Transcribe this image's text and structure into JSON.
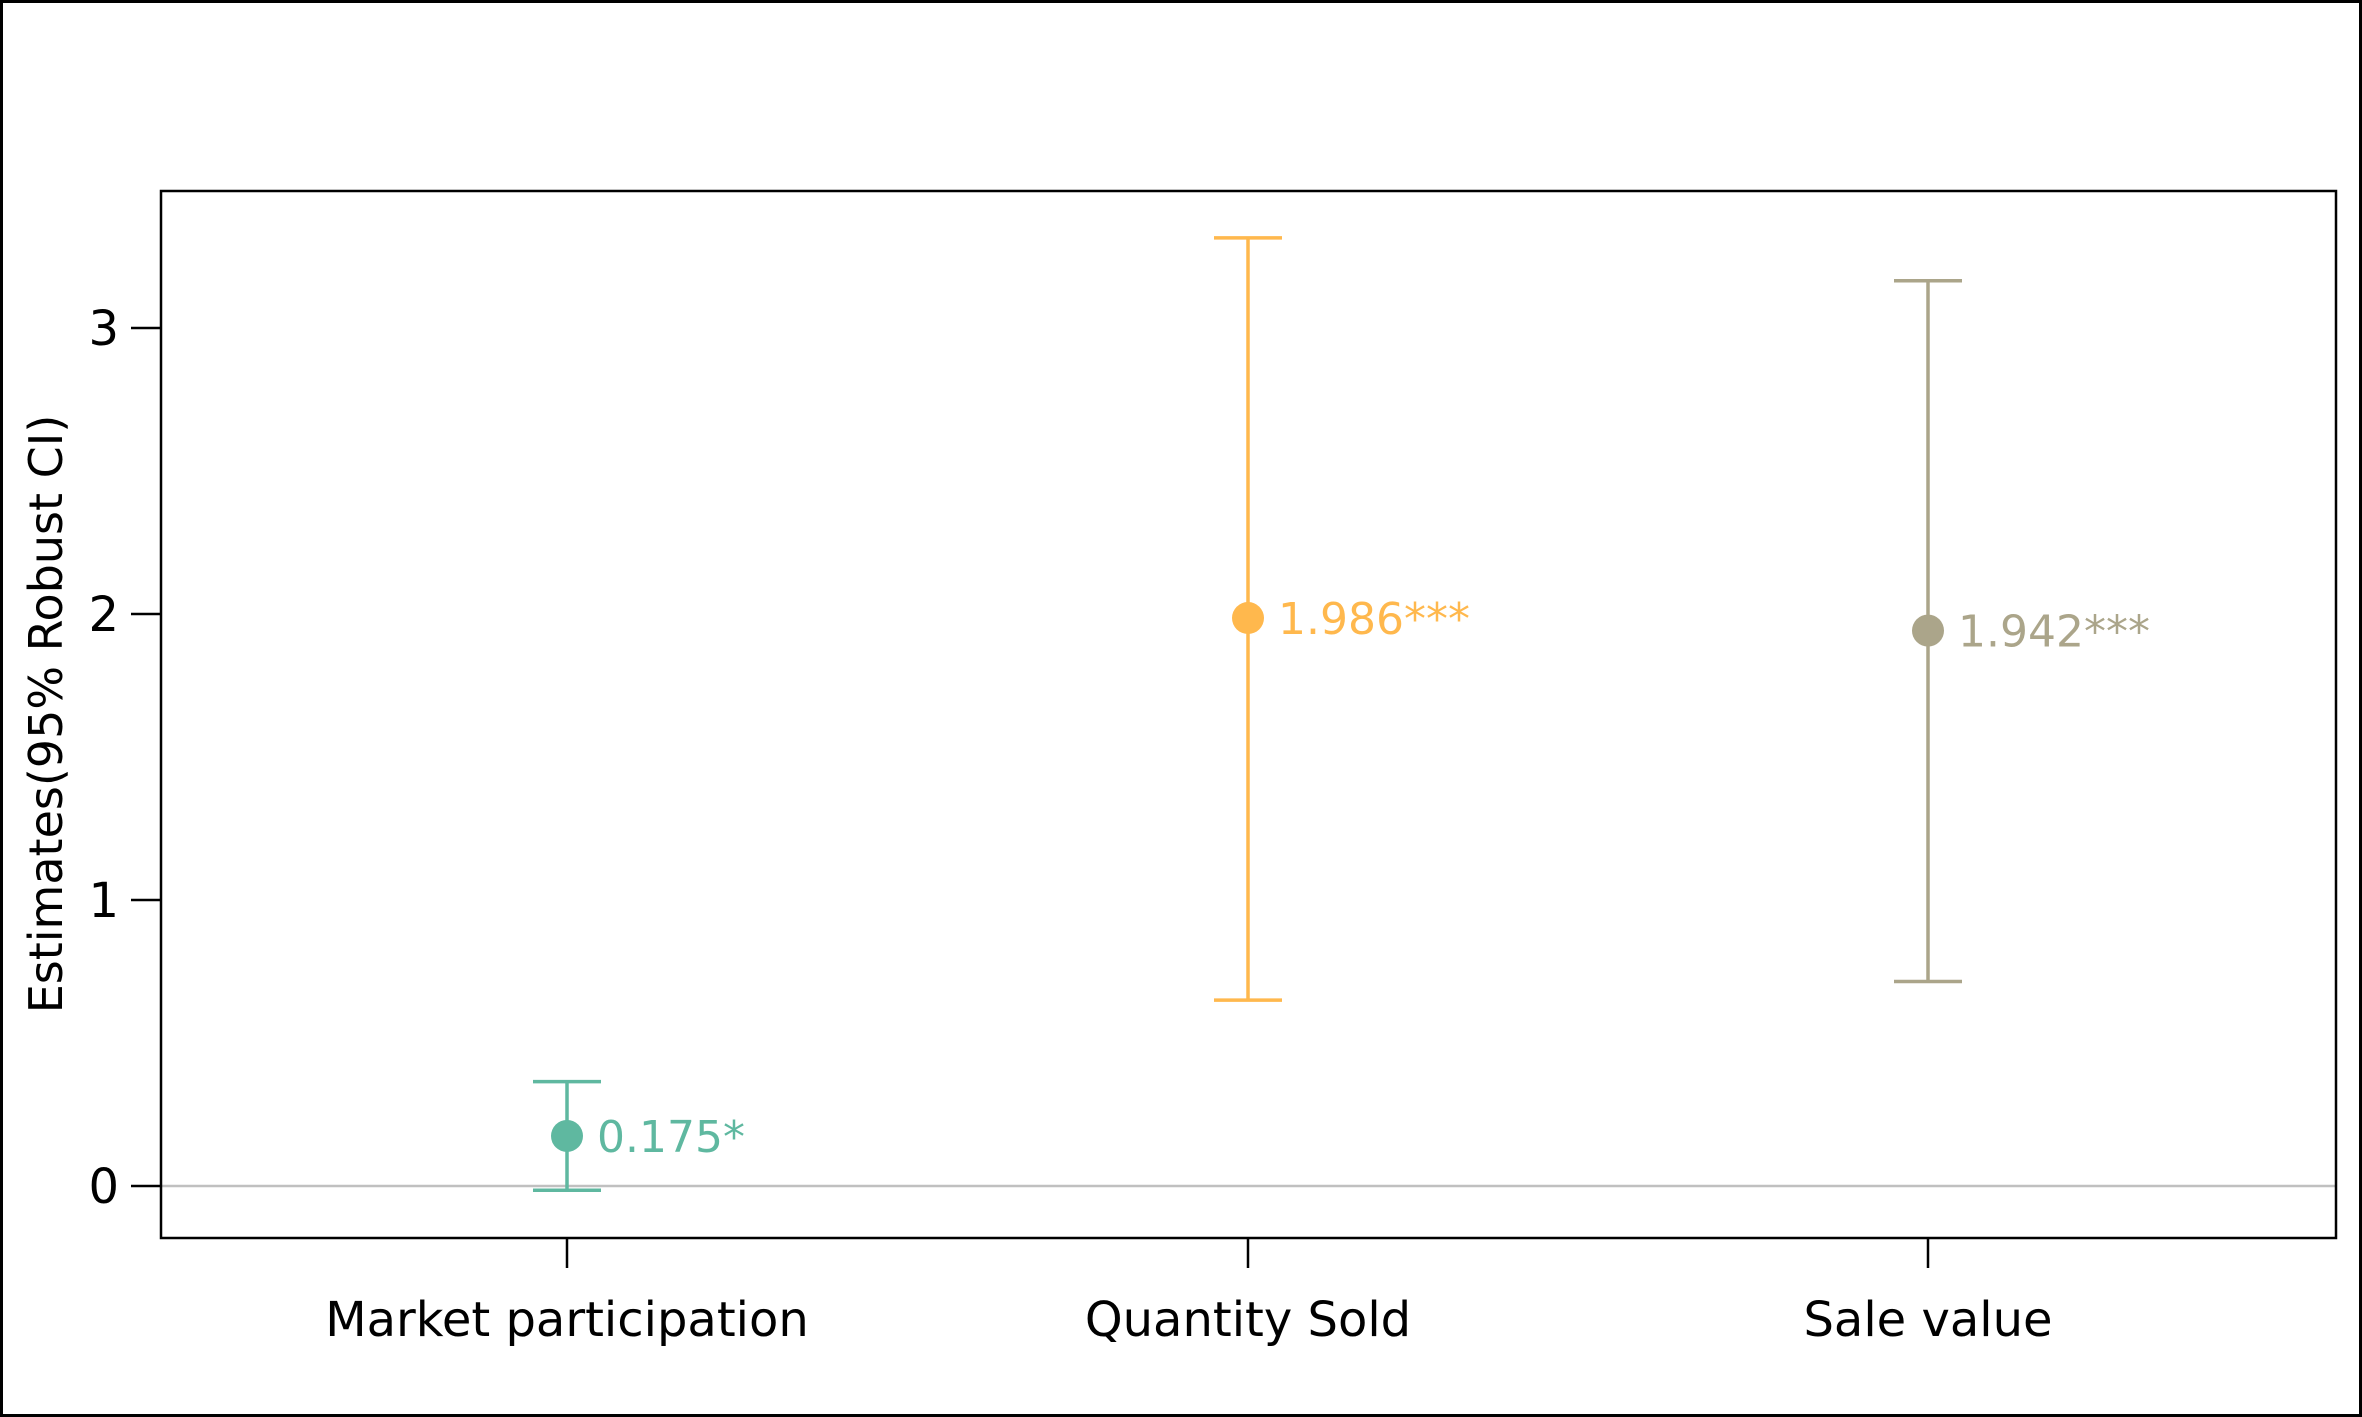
{
  "chart_data": {
    "type": "errorbar",
    "title": "",
    "xlabel": "",
    "ylabel": "Estimates(95% Robust CI)",
    "categories": [
      "Market participation",
      "Quantity Sold",
      "Sale value"
    ],
    "yticks": [
      0,
      1,
      2,
      3
    ],
    "ylim": [
      -0.18,
      3.47
    ],
    "grid": false,
    "reference_line": 0,
    "reference_line_color": "#c0c0c0",
    "points": [
      {
        "category": "Market participation",
        "estimate": 0.175,
        "ci_low": -0.015,
        "ci_high": 0.365,
        "label": "0.175*",
        "color": "#5fb8a0"
      },
      {
        "category": "Quantity Sold",
        "estimate": 1.986,
        "ci_low": 0.65,
        "ci_high": 3.315,
        "label": "1.986***",
        "color": "#ffb84d"
      },
      {
        "category": "Sale value",
        "estimate": 1.942,
        "ci_low": 0.715,
        "ci_high": 3.165,
        "label": "1.942***",
        "color": "#aba58a"
      }
    ]
  }
}
